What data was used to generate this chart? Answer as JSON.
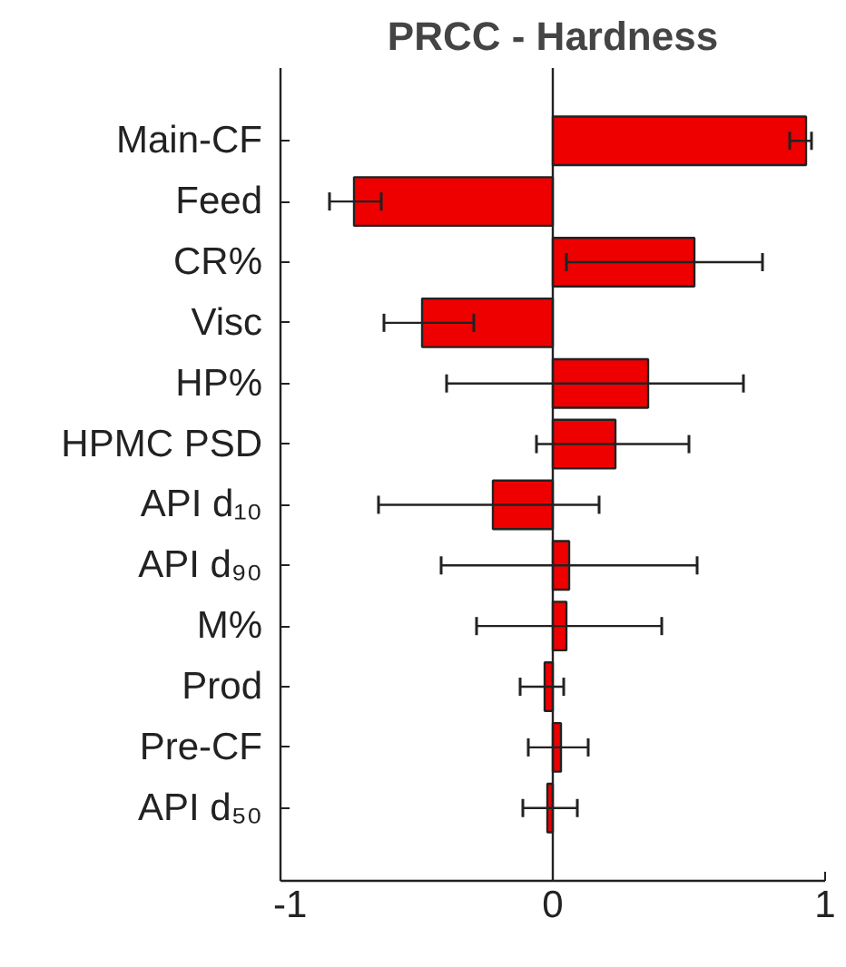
{
  "chart_data": {
    "type": "bar",
    "orientation": "horizontal",
    "title": "PRCC - Hardness",
    "categories": [
      "Main-CF",
      "Feed",
      "CR%",
      "Visc",
      "HP%",
      "HPMC PSD",
      "API d₁₀",
      "API d₉₀",
      "M%",
      "Prod",
      "Pre-CF",
      "API d₅₀"
    ],
    "values": [
      0.93,
      -0.73,
      0.52,
      -0.48,
      0.35,
      0.23,
      -0.22,
      0.06,
      0.05,
      -0.03,
      0.03,
      -0.02
    ],
    "errors": [
      [
        0.87,
        0.95
      ],
      [
        -0.82,
        -0.63
      ],
      [
        0.05,
        0.77
      ],
      [
        -0.62,
        -0.29
      ],
      [
        -0.39,
        0.7
      ],
      [
        -0.06,
        0.5
      ],
      [
        -0.64,
        0.17
      ],
      [
        -0.41,
        0.53
      ],
      [
        -0.28,
        0.4
      ],
      [
        -0.12,
        0.04
      ],
      [
        -0.09,
        0.13
      ],
      [
        -0.11,
        0.09
      ]
    ],
    "color": "#ee0000",
    "xlim": [
      -1,
      1
    ],
    "xticks": [
      -1,
      0,
      1
    ],
    "ref_lines": [
      {
        "axis": "x",
        "value": 0
      }
    ],
    "grid": false
  }
}
